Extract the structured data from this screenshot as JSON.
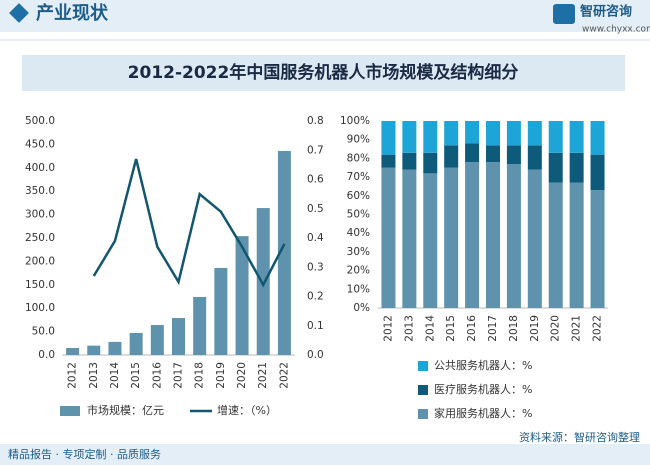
{
  "header": {
    "section": "产业现状",
    "logo": "智研咨询",
    "url": "www.chyxx.com"
  },
  "title": "2012-2022年中国服务机器人市场规模及结构细分",
  "footer": {
    "left": "精品报告 · 专项定制 · 品质服务",
    "source": "资料来源：智研咨询整理"
  },
  "chart_data": [
    {
      "type": "bar_line",
      "categories": [
        "2012",
        "2013",
        "2014",
        "2015",
        "2016",
        "2017",
        "2018",
        "2019",
        "2020",
        "2021",
        "2022"
      ],
      "series": [
        {
          "name": "市场规模：亿元",
          "color": "#5f93ad",
          "type": "bar",
          "values": [
            15,
            20,
            28,
            47,
            64,
            79,
            124,
            186,
            254,
            314,
            436
          ]
        },
        {
          "name": "增速：（%）",
          "color": "#13566f",
          "type": "line",
          "axis": "y2",
          "values": [
            null,
            0.27,
            0.39,
            0.67,
            0.37,
            0.25,
            0.55,
            0.49,
            0.37,
            0.24,
            0.38
          ]
        }
      ],
      "ylim": [
        0,
        500
      ],
      "yticks": [
        {
          "value": 0,
          "label": "0.0"
        },
        {
          "value": 50,
          "label": "50.0"
        },
        {
          "value": 100,
          "label": "100.0"
        },
        {
          "value": 150,
          "label": "150.0"
        },
        {
          "value": 200,
          "label": "200.0"
        },
        {
          "value": 250,
          "label": "250.0"
        },
        {
          "value": 300,
          "label": "300.0"
        },
        {
          "value": 350,
          "label": "350.0"
        },
        {
          "value": 400,
          "label": "400.0"
        },
        {
          "value": 450,
          "label": "450.0"
        },
        {
          "value": 500,
          "label": "500.0"
        }
      ],
      "y2lim": [
        0,
        0.8
      ],
      "y2ticks": [
        {
          "value": 0,
          "label": "0.0"
        },
        0.1,
        0.2,
        0.3,
        0.4,
        0.5,
        0.6,
        0.7,
        0.8
      ]
    },
    {
      "type": "stacked_bar",
      "categories": [
        "2012",
        "2013",
        "2014",
        "2015",
        "2016",
        "2017",
        "2018",
        "2019",
        "2020",
        "2021",
        "2022"
      ],
      "series": [
        {
          "name": "家用服务机器人：%",
          "color": "#5f93ad",
          "values": [
            75,
            74,
            72,
            75,
            78,
            78,
            77,
            74,
            67,
            67,
            63
          ]
        },
        {
          "name": "医疗服务机器人：%",
          "color": "#0d5a7a",
          "values": [
            7,
            9,
            11,
            12,
            10,
            9,
            10,
            13,
            16,
            16,
            19
          ]
        },
        {
          "name": "公共服务机器人：%",
          "color": "#1ea5d8",
          "values": [
            18,
            17,
            17,
            13,
            12,
            13,
            13,
            13,
            17,
            17,
            18
          ]
        }
      ],
      "ylim": [
        0,
        100
      ],
      "yticks": [
        {
          "value": 0,
          "label": "0%"
        },
        {
          "value": 10,
          "label": "10%"
        },
        {
          "value": 20,
          "label": "20%"
        },
        {
          "value": 30,
          "label": "30%"
        },
        {
          "value": 40,
          "label": "40%"
        },
        {
          "value": 50,
          "label": "50%"
        },
        {
          "value": 60,
          "label": "60%"
        },
        {
          "value": 70,
          "label": "70%"
        },
        {
          "value": 80,
          "label": "80%"
        },
        {
          "value": 90,
          "label": "90%"
        },
        {
          "value": 100,
          "label": "100%"
        }
      ]
    }
  ]
}
